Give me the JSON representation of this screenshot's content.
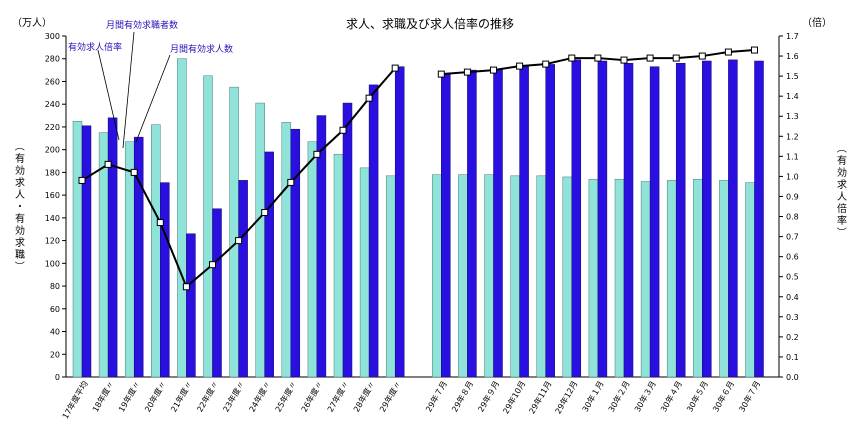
{
  "chart_data": {
    "type": "bar",
    "title": "求人、求職及び求人倍率の推移",
    "left_unit": "（万人）",
    "right_unit": "（倍）",
    "ylabel_left": "（有効求人・有効求職）",
    "ylabel_right": "（有効求人倍率）",
    "ylim_left": [
      0,
      300
    ],
    "yticks_left": [
      "0",
      "20",
      "40",
      "60",
      "80",
      "100",
      "120",
      "140",
      "160",
      "180",
      "200",
      "220",
      "240",
      "260",
      "280",
      "300"
    ],
    "ylim_right": [
      0,
      1.7
    ],
    "yticks_right": [
      "0.0",
      "0.1",
      "0.2",
      "0.3",
      "0.4",
      "0.5",
      "0.6",
      "0.7",
      "0.8",
      "0.9",
      "1.0",
      "1.1",
      "1.2",
      "1.3",
      "1.4",
      "1.5",
      "1.6",
      "1.7"
    ],
    "grid": false,
    "categories": [
      "17年度平均",
      "18年度〃",
      "19年度〃",
      "20年度〃",
      "21年度〃",
      "22年度〃",
      "23年度〃",
      "24年度〃",
      "25年度〃",
      "26年度〃",
      "27年度〃",
      "28年度〃",
      "29年度〃",
      "29年７月",
      "29年８月",
      "29年９月",
      "29年10月",
      "29年11月",
      "29年12月",
      "30年１月",
      "30年２月",
      "30年３月",
      "30年４月",
      "30年５月",
      "30年６月",
      "30年７月"
    ],
    "series": [
      {
        "name": "月間有効求職者数",
        "kind": "bar",
        "color": "#8fe3d8",
        "values": [
          225,
          215,
          207,
          222,
          280,
          265,
          255,
          241,
          224,
          207,
          196,
          184,
          177,
          178,
          178,
          178,
          177,
          177,
          176,
          174,
          174,
          172,
          173,
          174,
          173,
          171
        ]
      },
      {
        "name": "月間有効求人数",
        "kind": "bar",
        "color": "#2a10e0",
        "values": [
          221,
          228,
          211,
          171,
          126,
          148,
          173,
          198,
          218,
          230,
          241,
          257,
          273,
          267,
          270,
          271,
          273,
          275,
          279,
          278,
          276,
          273,
          276,
          278,
          279,
          278
        ]
      },
      {
        "name": "有効求人倍率",
        "kind": "line",
        "axis": "right",
        "color": "#000000",
        "values": [
          0.98,
          1.06,
          1.02,
          0.77,
          0.45,
          0.56,
          0.68,
          0.82,
          0.97,
          1.11,
          1.23,
          1.39,
          1.54,
          1.51,
          1.52,
          1.53,
          1.55,
          1.56,
          1.59,
          1.59,
          1.58,
          1.59,
          1.59,
          1.6,
          1.62,
          1.63
        ]
      }
    ],
    "legend_placement": "top-left",
    "legend_labels": {
      "ratio": "有効求人倍率",
      "seekers": "月間有効求職者数",
      "openings": "月間有効求人数"
    }
  }
}
